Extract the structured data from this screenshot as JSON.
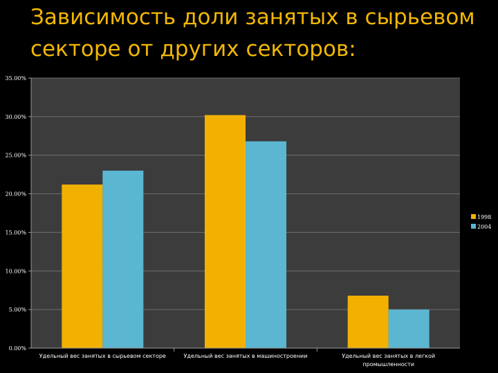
{
  "title": "Зависимость доли занятых в сырьевом\nсекторе от других секторов:",
  "colors": {
    "background": "#000000",
    "plot_background": "#3c3c3c",
    "title": "#f2b705",
    "series_1998": "#f2b100",
    "series_2004": "#5bb6d2"
  },
  "chart_data": {
    "type": "bar",
    "categories": [
      "Удельный вес занятых в сырьевом секторе",
      "Удельный вес занятых в машиностроении",
      "Удельный вес занятых в легкой промышленности"
    ],
    "category_lines": [
      [
        "Удельный вес занятых в сырьевом секторе"
      ],
      [
        "Удельный вес занятых в машиностроении"
      ],
      [
        "Удельный вес занятых в легкой",
        "промышленности"
      ]
    ],
    "series": [
      {
        "name": "1998",
        "values": [
          0.212,
          0.302,
          0.068
        ]
      },
      {
        "name": "2004",
        "values": [
          0.23,
          0.268,
          0.05
        ]
      }
    ],
    "ylim": [
      0,
      0.35
    ],
    "yticks": [
      0,
      0.05,
      0.1,
      0.15,
      0.2,
      0.25,
      0.3,
      0.35
    ],
    "ytick_labels": [
      "0.00%",
      "5.00%",
      "10.00%",
      "15.00%",
      "20.00%",
      "25.00%",
      "30.00%",
      "35.00%"
    ],
    "grid": true,
    "legend": "right"
  }
}
